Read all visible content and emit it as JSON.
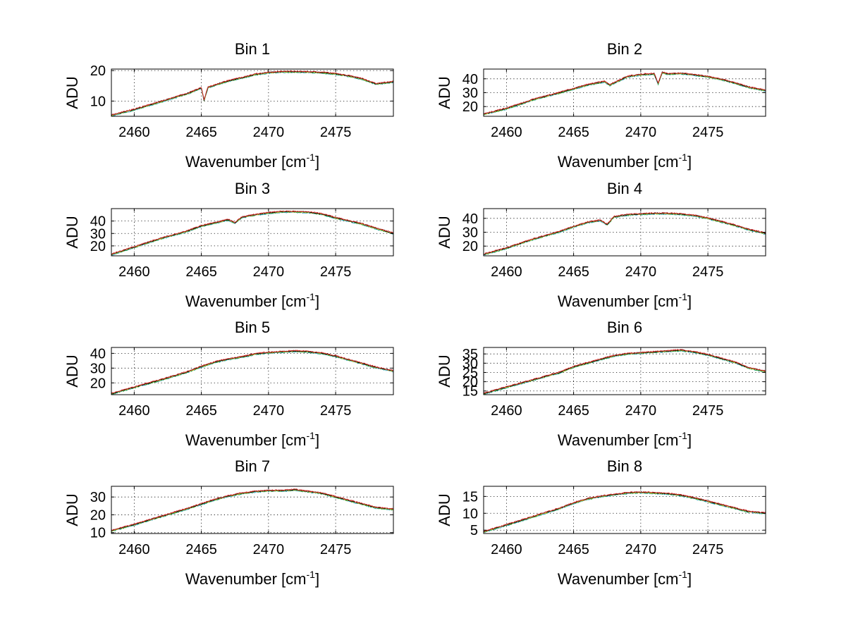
{
  "figure_background": "#ffffff",
  "chart_data": [
    {
      "type": "line",
      "title": "Bin 1",
      "xlabel": "Wavenumber [cm",
      "xlabel_sup": "-1",
      "xlabel_close": "]",
      "ylabel": "ADU",
      "xlim": [
        2458.3,
        2479.3
      ],
      "ylim": [
        5,
        20.5
      ],
      "xticks": [
        "2460",
        "2465",
        "2470",
        "2475"
      ],
      "yticks": [
        "10",
        "20"
      ],
      "grid": true,
      "x": [
        2458.3,
        2460,
        2462,
        2464,
        2465,
        2465.2,
        2465.5,
        2467,
        2468,
        2469,
        2470,
        2471,
        2472,
        2473,
        2474,
        2475,
        2476,
        2477,
        2478,
        2479.3
      ],
      "series": [
        {
          "values": [
            5.3,
            7.2,
            9.8,
            12.5,
            14.3,
            10.2,
            14.5,
            16.6,
            17.6,
            18.7,
            19.3,
            19.6,
            19.6,
            19.5,
            19.3,
            18.9,
            18.2,
            17.2,
            15.6,
            16.3
          ]
        }
      ]
    },
    {
      "type": "line",
      "title": "Bin 2",
      "xlabel": "Wavenumber [cm",
      "xlabel_sup": "-1",
      "xlabel_close": "]",
      "ylabel": "ADU",
      "xlim": [
        2458.3,
        2479.3
      ],
      "ylim": [
        13,
        47
      ],
      "xticks": [
        "2460",
        "2465",
        "2470",
        "2475"
      ],
      "yticks": [
        "20",
        "30",
        "40"
      ],
      "grid": true,
      "x": [
        2458.3,
        2460,
        2462,
        2464,
        2466,
        2467.3,
        2467.7,
        2469,
        2470,
        2471,
        2471.3,
        2471.6,
        2472,
        2473,
        2474,
        2475,
        2476,
        2477,
        2478,
        2479.3
      ],
      "series": [
        {
          "values": [
            14.5,
            18.5,
            25,
            30,
            35.5,
            38,
            35.5,
            41.5,
            43,
            43.5,
            36.5,
            44.5,
            43.5,
            43.8,
            42.8,
            41.5,
            39.5,
            37,
            34,
            31.5
          ]
        }
      ]
    },
    {
      "type": "line",
      "title": "Bin 3",
      "xlabel": "Wavenumber [cm",
      "xlabel_sup": "-1",
      "xlabel_close": "]",
      "ylabel": "ADU",
      "xlim": [
        2458.3,
        2479.3
      ],
      "ylim": [
        12,
        50
      ],
      "xticks": [
        "2460",
        "2465",
        "2470",
        "2475"
      ],
      "yticks": [
        "20",
        "30",
        "40"
      ],
      "grid": true,
      "x": [
        2458.3,
        2460,
        2462,
        2464,
        2465,
        2466,
        2467,
        2467.5,
        2468,
        2469,
        2470,
        2471,
        2472,
        2473,
        2474,
        2475,
        2476,
        2477,
        2478,
        2479.3
      ],
      "series": [
        {
          "values": [
            13,
            19,
            26,
            32,
            36,
            38.5,
            41,
            38.5,
            43,
            45,
            46.5,
            47.5,
            47.5,
            47,
            45.5,
            42.5,
            40,
            37.5,
            34,
            30
          ]
        }
      ]
    },
    {
      "type": "line",
      "title": "Bin 4",
      "xlabel": "Wavenumber [cm",
      "xlabel_sup": "-1",
      "xlabel_close": "]",
      "ylabel": "ADU",
      "xlim": [
        2458.3,
        2479.3
      ],
      "ylim": [
        13,
        47
      ],
      "xticks": [
        "2460",
        "2465",
        "2470",
        "2475"
      ],
      "yticks": [
        "20",
        "30",
        "40"
      ],
      "grid": true,
      "x": [
        2458.3,
        2460,
        2462,
        2464,
        2465,
        2466,
        2467,
        2467.5,
        2468,
        2469,
        2470,
        2471,
        2472,
        2473,
        2474,
        2475,
        2476,
        2477,
        2478,
        2479.3
      ],
      "series": [
        {
          "values": [
            14,
            18.5,
            25,
            30.5,
            34,
            37,
            38.5,
            35.5,
            41,
            42.5,
            43,
            43.5,
            43.5,
            43,
            42,
            40,
            37.5,
            35,
            32,
            29
          ]
        }
      ]
    },
    {
      "type": "line",
      "title": "Bin 5",
      "xlabel": "Wavenumber [cm",
      "xlabel_sup": "-1",
      "xlabel_close": "]",
      "ylabel": "ADU",
      "xlim": [
        2458.3,
        2479.3
      ],
      "ylim": [
        12,
        44
      ],
      "xticks": [
        "2460",
        "2465",
        "2470",
        "2475"
      ],
      "yticks": [
        "20",
        "30",
        "40"
      ],
      "grid": true,
      "x": [
        2458.3,
        2460,
        2462,
        2464,
        2465,
        2466,
        2467,
        2468,
        2469,
        2470,
        2471,
        2472,
        2473,
        2474,
        2475,
        2476,
        2477,
        2478,
        2479.3
      ],
      "series": [
        {
          "values": [
            12.5,
            17,
            22,
            27.5,
            31,
            34,
            36,
            37.5,
            39.5,
            40.5,
            41,
            41.5,
            41,
            40,
            38,
            35.5,
            33,
            30.5,
            28
          ]
        }
      ]
    },
    {
      "type": "line",
      "title": "Bin 6",
      "xlabel": "Wavenumber [cm",
      "xlabel_sup": "-1",
      "xlabel_close": "]",
      "ylabel": "ADU",
      "xlim": [
        2458.3,
        2479.3
      ],
      "ylim": [
        13,
        38.5
      ],
      "xticks": [
        "2460",
        "2465",
        "2470",
        "2475"
      ],
      "yticks": [
        "15",
        "20",
        "25",
        "30",
        "35"
      ],
      "grid": true,
      "x": [
        2458.3,
        2460,
        2462,
        2464,
        2465,
        2466,
        2467,
        2468,
        2469,
        2470,
        2471,
        2472,
        2473,
        2474,
        2475,
        2476,
        2477,
        2478,
        2479.3
      ],
      "series": [
        {
          "values": [
            13.5,
            17,
            21,
            25,
            28,
            30,
            32,
            34,
            35,
            35.5,
            36,
            36.5,
            37,
            36,
            34.5,
            32.5,
            30.5,
            27.5,
            25.5
          ]
        }
      ]
    },
    {
      "type": "line",
      "title": "Bin 7",
      "xlabel": "Wavenumber [cm",
      "xlabel_sup": "-1",
      "xlabel_close": "]",
      "ylabel": "ADU",
      "xlim": [
        2458.3,
        2479.3
      ],
      "ylim": [
        9.5,
        36
      ],
      "xticks": [
        "2460",
        "2465",
        "2470",
        "2475"
      ],
      "yticks": [
        "10",
        "20",
        "30"
      ],
      "grid": true,
      "x": [
        2458.3,
        2460,
        2462,
        2464,
        2465,
        2466,
        2467,
        2468,
        2469,
        2470,
        2471,
        2472,
        2473,
        2474,
        2475,
        2476,
        2477,
        2478,
        2479.3
      ],
      "series": [
        {
          "values": [
            11,
            14.5,
            19,
            23.5,
            26,
            28.5,
            30.5,
            32,
            33,
            33.5,
            33.5,
            34,
            33,
            32,
            30,
            28,
            26,
            24,
            23
          ]
        }
      ]
    },
    {
      "type": "line",
      "title": "Bin 8",
      "xlabel": "Wavenumber [cm",
      "xlabel_sup": "-1",
      "xlabel_close": "]",
      "ylabel": "ADU",
      "xlim": [
        2458.3,
        2479.3
      ],
      "ylim": [
        4,
        18
      ],
      "xticks": [
        "2460",
        "2465",
        "2470",
        "2475"
      ],
      "yticks": [
        "5",
        "10",
        "15"
      ],
      "grid": true,
      "x": [
        2458.3,
        2460,
        2462,
        2464,
        2465,
        2466,
        2467,
        2468,
        2469,
        2470,
        2471,
        2472,
        2473,
        2474,
        2475,
        2476,
        2477,
        2478,
        2479.3
      ],
      "series": [
        {
          "values": [
            4.5,
            6.5,
            9,
            11.5,
            13,
            14.2,
            15,
            15.5,
            16,
            16.2,
            16,
            15.8,
            15.3,
            14.5,
            13.5,
            12.5,
            11.5,
            10.5,
            10
          ]
        }
      ]
    }
  ],
  "overlay_colors": [
    "#1f9fbf",
    "#2ca02c",
    "#bcbd22",
    "#000000",
    "#d62728"
  ]
}
